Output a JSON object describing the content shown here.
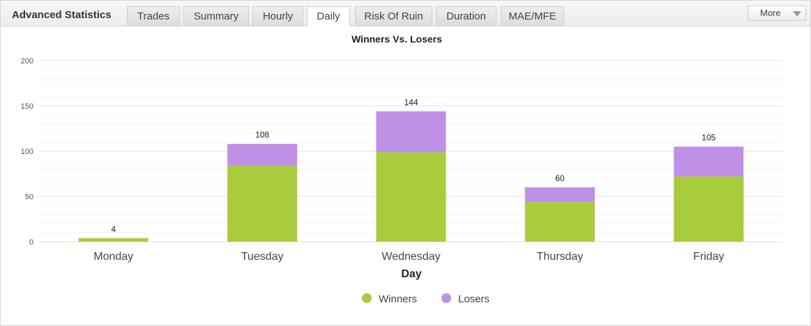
{
  "header": {
    "title": "Advanced Statistics",
    "tabs": [
      {
        "label": "Trades",
        "active": false
      },
      {
        "label": "Summary",
        "active": false
      },
      {
        "label": "Hourly",
        "active": false
      },
      {
        "label": "Daily",
        "active": true
      },
      {
        "label": "Risk Of Ruin",
        "active": false
      },
      {
        "label": "Duration",
        "active": false
      },
      {
        "label": "MAE/MFE",
        "active": false
      }
    ],
    "more_label": "More"
  },
  "chart_data": {
    "type": "bar",
    "stacked": true,
    "title": "Winners Vs. Losers",
    "xlabel": "Day",
    "ylabel": "",
    "categories": [
      "Monday",
      "Tuesday",
      "Wednesday",
      "Thursday",
      "Friday"
    ],
    "series": [
      {
        "name": "Winners",
        "color": "#a8cc3c",
        "values": [
          4,
          84,
          99,
          44,
          72
        ]
      },
      {
        "name": "Losers",
        "color": "#c08fe6",
        "values": [
          0,
          24,
          45,
          16,
          33
        ]
      }
    ],
    "totals": [
      "4",
      "108",
      "144",
      "60",
      "105"
    ],
    "yticks": [
      "0",
      "50",
      "100",
      "150",
      "200"
    ],
    "ylim": [
      0,
      200
    ],
    "grid": true,
    "legend_position": "bottom"
  }
}
